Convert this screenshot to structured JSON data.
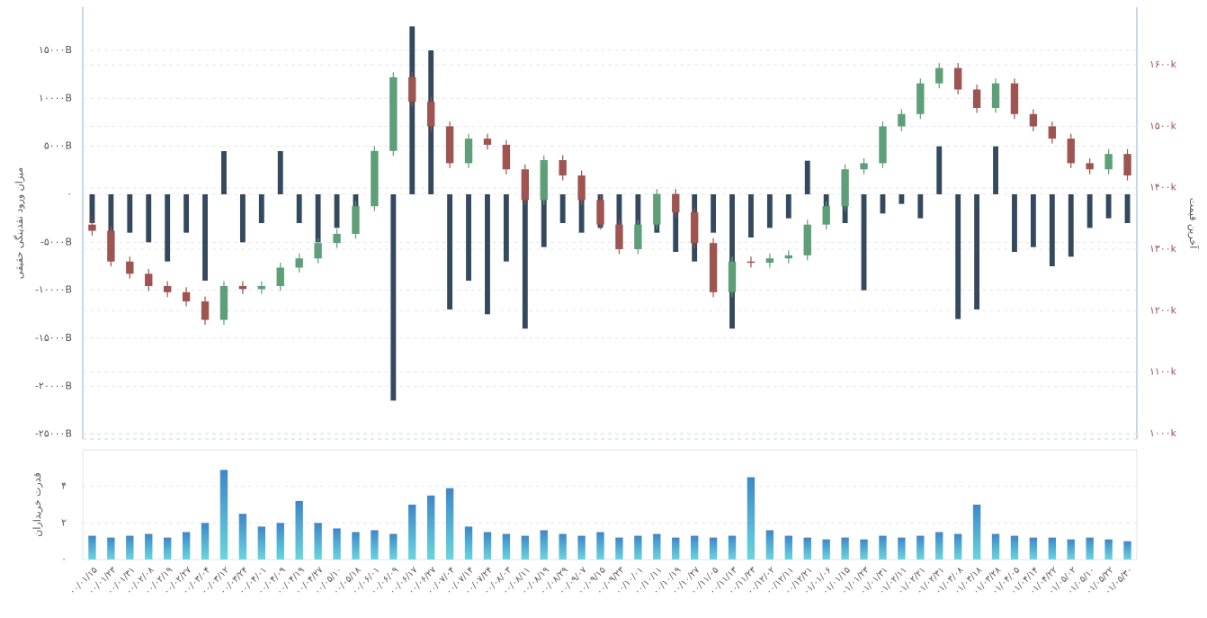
{
  "chart_data": [
    {
      "type": "candlestick",
      "ylabel": "میزان ورود نقدینگی حقیقی",
      "y2label": "آخرین قیمت",
      "ylim": [
        -25500,
        19500
      ],
      "yticks": [
        {
          "value": 15000,
          "label": "۱۵۰۰۰B"
        },
        {
          "value": 10000,
          "label": "۱۰۰۰۰B"
        },
        {
          "value": 5000,
          "label": "۵۰۰۰B"
        },
        {
          "value": 0,
          "label": "۰"
        },
        {
          "value": -5000,
          "label": "-۵۰۰۰B"
        },
        {
          "value": -10000,
          "label": "-۱۰۰۰۰B"
        },
        {
          "value": -15000,
          "label": "-۱۵۰۰۰B"
        },
        {
          "value": -20000,
          "label": "-۲۰۰۰۰B"
        },
        {
          "value": -25000,
          "label": "-۲۵۰۰۰B"
        }
      ],
      "y2lim": [
        991,
        1694
      ],
      "y2ticks": [
        {
          "value": 1600,
          "label": "۱۶۰۰k"
        },
        {
          "value": 1500,
          "label": "۱۵۰۰k"
        },
        {
          "value": 1400,
          "label": "۱۴۰۰k"
        },
        {
          "value": 1300,
          "label": "۱۳۰۰k"
        },
        {
          "value": 1200,
          "label": "۱۲۰۰k"
        },
        {
          "value": 1100,
          "label": "۱۱۰۰k"
        },
        {
          "value": 1000,
          "label": "۱۰۰۰k"
        }
      ],
      "grid": true,
      "series": [
        {
          "type": "bar",
          "color": "#34495e",
          "values": [
            -3000,
            -7000,
            -4000,
            -5000,
            -7000,
            -4000,
            -9000,
            4500,
            -5000,
            -3000,
            4500,
            -3000,
            -5000,
            -3500,
            -1500,
            2000,
            -21500,
            17500,
            15000,
            -12000,
            -9000,
            -12500,
            -7000,
            -14000,
            -5500,
            -3000,
            -4000,
            -3500,
            -5000,
            -3500,
            -4000,
            -6000,
            -7000,
            -4000,
            -14000,
            -4500,
            -3500,
            -2500,
            3500,
            -2500,
            -3000,
            -10000,
            -2000,
            -1000,
            -2500,
            5000,
            -13000,
            -12000,
            5000,
            -6000,
            -5500,
            -7500,
            -6500,
            -3500,
            -2500,
            -3000
          ]
        },
        {
          "type": "candlestick",
          "axis": "y2",
          "up_color": "#5e9e78",
          "down_color": "#9e5450",
          "open": [
            1340,
            1330,
            1280,
            1260,
            1240,
            1230,
            1215,
            1185,
            1240,
            1235,
            1240,
            1270,
            1285,
            1310,
            1325,
            1370,
            1460,
            1580,
            1540,
            1500,
            1440,
            1480,
            1470,
            1430,
            1380,
            1445,
            1420,
            1380,
            1340,
            1300,
            1340,
            1390,
            1360,
            1310,
            1230,
            1280,
            1278,
            1285,
            1290,
            1340,
            1370,
            1430,
            1440,
            1500,
            1520,
            1570,
            1595,
            1560,
            1530,
            1570,
            1520,
            1500,
            1480,
            1440,
            1430,
            1455
          ],
          "high": [
            1348,
            1338,
            1288,
            1268,
            1248,
            1238,
            1223,
            1248,
            1248,
            1248,
            1278,
            1293,
            1318,
            1333,
            1378,
            1468,
            1588,
            1588,
            1548,
            1508,
            1488,
            1488,
            1478,
            1438,
            1453,
            1453,
            1428,
            1388,
            1348,
            1348,
            1398,
            1398,
            1368,
            1318,
            1288,
            1288,
            1293,
            1298,
            1348,
            1378,
            1438,
            1448,
            1508,
            1528,
            1578,
            1603,
            1603,
            1568,
            1578,
            1578,
            1528,
            1508,
            1488,
            1448,
            1463,
            1463
          ],
          "low": [
            1322,
            1272,
            1252,
            1232,
            1222,
            1207,
            1177,
            1177,
            1227,
            1227,
            1232,
            1262,
            1277,
            1302,
            1317,
            1362,
            1452,
            1532,
            1492,
            1432,
            1432,
            1462,
            1422,
            1372,
            1372,
            1412,
            1372,
            1332,
            1292,
            1292,
            1332,
            1352,
            1302,
            1222,
            1222,
            1270,
            1270,
            1277,
            1282,
            1332,
            1362,
            1422,
            1432,
            1492,
            1512,
            1562,
            1552,
            1522,
            1522,
            1512,
            1492,
            1472,
            1432,
            1422,
            1422,
            1412
          ],
          "close": [
            1330,
            1280,
            1260,
            1240,
            1230,
            1215,
            1185,
            1240,
            1235,
            1240,
            1270,
            1285,
            1310,
            1325,
            1370,
            1460,
            1580,
            1540,
            1500,
            1440,
            1480,
            1470,
            1430,
            1380,
            1445,
            1420,
            1380,
            1340,
            1300,
            1340,
            1390,
            1360,
            1310,
            1230,
            1280,
            1278,
            1285,
            1290,
            1340,
            1370,
            1430,
            1440,
            1500,
            1520,
            1570,
            1595,
            1560,
            1530,
            1570,
            1520,
            1500,
            1480,
            1440,
            1430,
            1455,
            1420
          ]
        }
      ]
    },
    {
      "type": "bar",
      "ylabel": "قدرت خریداران",
      "ylim": [
        0,
        6
      ],
      "yticks": [
        {
          "value": 0,
          "label": "۰"
        },
        {
          "value": 2,
          "label": "۲"
        },
        {
          "value": 4,
          "label": "۴"
        }
      ],
      "categories": [
        "۰۰/۰۱/۱۵",
        "۰۰/۰۱/۲۳",
        "۰۰/۰۱/۳۱",
        "۰۰/۰۲/۰۸",
        "۰۰/۰۲/۱۹",
        "۰۰/۰۲/۲۷",
        "۰۰/۰۳/۰۴",
        "۰۰/۰۳/۱۲",
        "۰۰/۰۳/۲۴",
        "۰۰/۰۴/۰۱",
        "۰۰/۰۴/۰۹",
        "۰۰/۰۴/۱۹",
        "۰۰/۰۴/۲۷",
        "۰۰/۰۵/۱۰",
        "۰۰/۰۵/۱۸",
        "۰۰/۰۶/۰۱",
        "۰۰/۰۶/۰۹",
        "۰۰/۰۶/۱۷",
        "۰۰/۰۶/۲۷",
        "۰۰/۰۷/۰۴",
        "۰۰/۰۷/۱۴",
        "۰۰/۰۷/۲۴",
        "۰۰/۰۸/۰۳",
        "۰۰/۰۸/۱۱",
        "۰۰/۰۸/۱۹",
        "۰۰/۰۸/۲۹",
        "۰۰/۰۹/۰۷",
        "۰۰/۰۹/۱۵",
        "۰۰/۰۹/۲۳",
        "۰۰/۱۰/۰۱",
        "۰۰/۱۰/۱۱",
        "۰۰/۱۰/۱۹",
        "۰۰/۱۰/۲۷",
        "۰۰/۱۱/۰۵",
        "۰۰/۱۱/۱۳",
        "۰۰/۱۱/۲۳",
        "۰۰/۱۲/۰۲",
        "۰۰/۱۲/۱۱",
        "۰۰/۱۲/۲۱",
        "۰۱/۰۱/۰۶",
        "۰۱/۰۱/۱۵",
        "۰۱/۰۱/۲۳",
        "۰۱/۰۱/۳۱",
        "۰۱/۰۲/۱۱",
        "۰۱/۰۲/۲۱",
        "۰۱/۰۲/۳۱",
        "۰۱/۰۳/۰۸",
        "۰۱/۰۳/۱۸",
        "۰۱/۰۳/۲۸",
        "۰۱/۰۴/۰۵",
        "۰۱/۰۴/۱۴",
        "۰۱/۰۴/۲۲",
        "۰۱/۰۵/۰۲",
        "۰۱/۰۵/۱۰",
        "۰۱/۰۵/۲۲",
        "۰۱/۰۵/۳۰"
      ],
      "values": [
        1.3,
        1.2,
        1.3,
        1.4,
        1.2,
        1.5,
        2.0,
        4.9,
        2.5,
        1.8,
        2.0,
        3.2,
        2.0,
        1.7,
        1.5,
        1.6,
        1.4,
        3.0,
        3.5,
        3.9,
        1.8,
        1.5,
        1.4,
        1.3,
        1.6,
        1.4,
        1.3,
        1.5,
        1.2,
        1.3,
        1.4,
        1.2,
        1.3,
        1.2,
        1.3,
        4.5,
        1.6,
        1.3,
        1.2,
        1.1,
        1.2,
        1.1,
        1.3,
        1.2,
        1.3,
        1.5,
        1.4,
        3.0,
        1.4,
        1.3,
        1.2,
        1.2,
        1.1,
        1.2,
        1.1,
        1.0
      ]
    }
  ]
}
